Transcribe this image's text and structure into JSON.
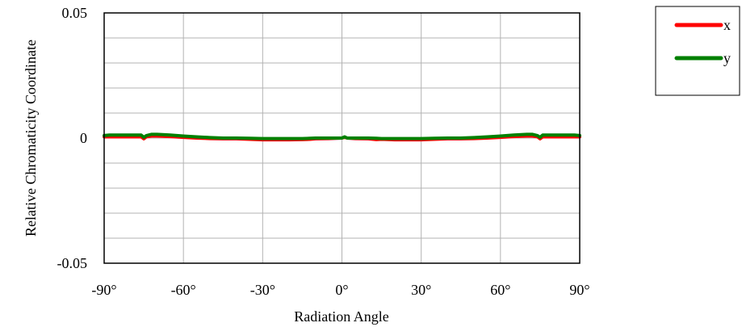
{
  "chart_data": {
    "type": "line",
    "title": "",
    "xlabel": "Radiation Angle",
    "ylabel": "Relative Chromaticity Coordinate",
    "xlim": [
      -90,
      90
    ],
    "ylim": [
      -0.05,
      0.05
    ],
    "x_ticks": [
      -90,
      -60,
      -30,
      0,
      30,
      60,
      90
    ],
    "x_tick_labels": [
      "-90°",
      "-60°",
      "-30°",
      "0°",
      "30°",
      "60°",
      "90°"
    ],
    "y_ticks": [
      0.05,
      0,
      -0.05
    ],
    "y_tick_labels": [
      "0.05",
      "0",
      "-0.05"
    ],
    "grid": true,
    "legend_position": "top-right",
    "series": [
      {
        "name": "x",
        "color": "#ff0000",
        "x": [
          -90,
          -88,
          -85,
          -80,
          -76,
          -75,
          -74,
          -72,
          -70,
          -65,
          -60,
          -55,
          -50,
          -45,
          -40,
          -35,
          -30,
          -25,
          -20,
          -15,
          -12,
          -10,
          -5,
          0,
          1,
          2,
          5,
          10,
          13,
          15,
          20,
          25,
          30,
          35,
          40,
          45,
          50,
          55,
          60,
          65,
          70,
          72,
          74,
          75,
          76,
          80,
          85,
          88,
          90
        ],
        "values": [
          0.0005,
          0.0005,
          0.0005,
          0.0005,
          0.0005,
          -0.0003,
          0.0005,
          0.0008,
          0.0008,
          0.0006,
          0.0003,
          0.0,
          -0.0002,
          -0.0003,
          -0.0003,
          -0.0005,
          -0.0007,
          -0.0007,
          -0.0007,
          -0.0006,
          -0.0005,
          -0.0003,
          -0.0002,
          0.0,
          0.0003,
          0.0,
          -0.0002,
          -0.0003,
          -0.0006,
          -0.0005,
          -0.0007,
          -0.0007,
          -0.0007,
          -0.0005,
          -0.0003,
          -0.0003,
          -0.0002,
          0.0,
          0.0003,
          0.0006,
          0.0008,
          0.0008,
          0.0005,
          -0.0003,
          0.0005,
          0.0005,
          0.0005,
          0.0005,
          0.0005
        ]
      },
      {
        "name": "y",
        "color": "#008000",
        "x": [
          -90,
          -88,
          -85,
          -80,
          -76,
          -75,
          -74,
          -72,
          -70,
          -65,
          -60,
          -55,
          -50,
          -45,
          -40,
          -35,
          -30,
          -25,
          -20,
          -15,
          -12,
          -10,
          -5,
          0,
          1,
          2,
          5,
          10,
          13,
          15,
          20,
          25,
          30,
          35,
          40,
          45,
          50,
          55,
          60,
          65,
          70,
          72,
          74,
          75,
          76,
          80,
          85,
          88,
          90
        ],
        "values": [
          0.001,
          0.0012,
          0.0012,
          0.0012,
          0.0012,
          0.0003,
          0.001,
          0.0015,
          0.0015,
          0.0012,
          0.0008,
          0.0005,
          0.0002,
          0.0,
          0.0,
          -0.0001,
          -0.0002,
          -0.0002,
          -0.0002,
          -0.0002,
          -0.0001,
          0.0,
          0.0,
          0.0,
          0.0005,
          0.0,
          0.0,
          0.0,
          -0.0001,
          -0.0002,
          -0.0002,
          -0.0002,
          -0.0002,
          -0.0001,
          0.0,
          0.0,
          0.0002,
          0.0005,
          0.0008,
          0.0012,
          0.0015,
          0.0015,
          0.001,
          0.0003,
          0.0012,
          0.0012,
          0.0012,
          0.0012,
          0.001
        ]
      }
    ]
  }
}
